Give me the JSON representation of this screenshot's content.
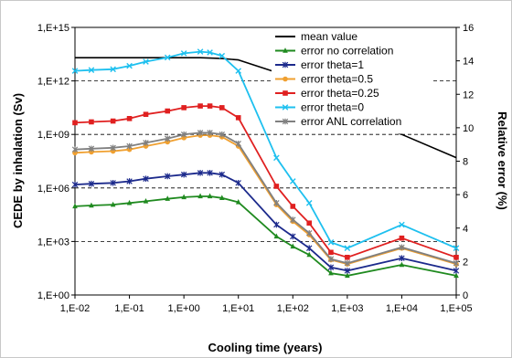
{
  "chart_data": {
    "type": "line",
    "xlabel": "Cooling time (years)",
    "ylabel_left": "CEDE by inhalation (Sv)",
    "ylabel_right": "Relative error (%)",
    "x_scale": "log",
    "y_left_scale": "log",
    "x": [
      0.01,
      0.02,
      0.05,
      0.1,
      0.2,
      0.5,
      1,
      2,
      3,
      5,
      10,
      50,
      100,
      200,
      500,
      1000,
      10000,
      100000
    ],
    "xlim": [
      0.01,
      100000
    ],
    "ylim_left": [
      1,
      1000000000000000
    ],
    "ylim_right": [
      0,
      16
    ],
    "x_ticks": [
      "1,E-02",
      "1,E-01",
      "1,E+00",
      "1,E+01",
      "1,E+02",
      "1,E+03",
      "1,E+04",
      "1,E+05"
    ],
    "y_left_ticks": [
      "1,E+00",
      "1,E+03",
      "1,E+06",
      "1,E+09",
      "1,E+12",
      "1,E+15"
    ],
    "y_right_ticks": [
      "0",
      "2",
      "4",
      "6",
      "8",
      "10",
      "12",
      "14",
      "16"
    ],
    "grid": "horizontal dashed at left-axis decades",
    "legend_position": "inside right",
    "series": [
      {
        "name": "mean value",
        "axis": "left",
        "color": "#000000",
        "marker": "none",
        "values": [
          20000000000000.0,
          20000000000000.0,
          20000000000000.0,
          20000000000000.0,
          20000000000000.0,
          20000000000000.0,
          20000000000000.0,
          20000000000000.0,
          19000000000000.0,
          18000000000000.0,
          15000000000000.0,
          3000000000000.0,
          1000000000000.0,
          250000000000.0,
          50000000000.0,
          12000000000.0,
          1000000000.0,
          50000000.0
        ]
      },
      {
        "name": "error no correlation",
        "axis": "right",
        "color": "#1f8a1f",
        "marker": "triangle",
        "values": [
          5.3,
          5.35,
          5.4,
          5.5,
          5.6,
          5.75,
          5.85,
          5.9,
          5.9,
          5.8,
          5.55,
          3.5,
          2.9,
          2.4,
          1.3,
          1.15,
          1.8,
          1.15
        ]
      },
      {
        "name": "error theta=1",
        "axis": "right",
        "color": "#1c2a8c",
        "marker": "star",
        "values": [
          6.6,
          6.65,
          6.7,
          6.8,
          6.95,
          7.1,
          7.2,
          7.3,
          7.3,
          7.2,
          6.7,
          4.2,
          3.5,
          2.8,
          1.65,
          1.45,
          2.2,
          1.45
        ]
      },
      {
        "name": "error theta=0.5",
        "axis": "right",
        "color": "#f0a030",
        "marker": "circle",
        "values": [
          8.5,
          8.55,
          8.6,
          8.7,
          8.9,
          9.15,
          9.4,
          9.55,
          9.55,
          9.45,
          8.9,
          5.4,
          4.4,
          3.6,
          2.1,
          1.85,
          2.8,
          1.85
        ]
      },
      {
        "name": "error theta=0.25",
        "axis": "right",
        "color": "#e02020",
        "marker": "square",
        "values": [
          10.3,
          10.35,
          10.4,
          10.55,
          10.8,
          11.0,
          11.2,
          11.3,
          11.3,
          11.2,
          10.6,
          6.5,
          5.3,
          4.3,
          2.55,
          2.25,
          3.4,
          2.25
        ]
      },
      {
        "name": "error theta=0",
        "axis": "right",
        "color": "#1ec0ef",
        "marker": "x",
        "values": [
          13.4,
          13.45,
          13.5,
          13.7,
          13.95,
          14.2,
          14.45,
          14.55,
          14.5,
          14.3,
          13.4,
          8.2,
          6.8,
          5.5,
          3.15,
          2.8,
          4.2,
          2.8
        ]
      },
      {
        "name": "error ANL correlation",
        "axis": "right",
        "color": "#808080",
        "marker": "star",
        "values": [
          8.7,
          8.75,
          8.8,
          8.9,
          9.1,
          9.35,
          9.6,
          9.7,
          9.7,
          9.6,
          9.05,
          5.5,
          4.5,
          3.7,
          2.15,
          1.9,
          2.85,
          1.9
        ]
      }
    ]
  }
}
